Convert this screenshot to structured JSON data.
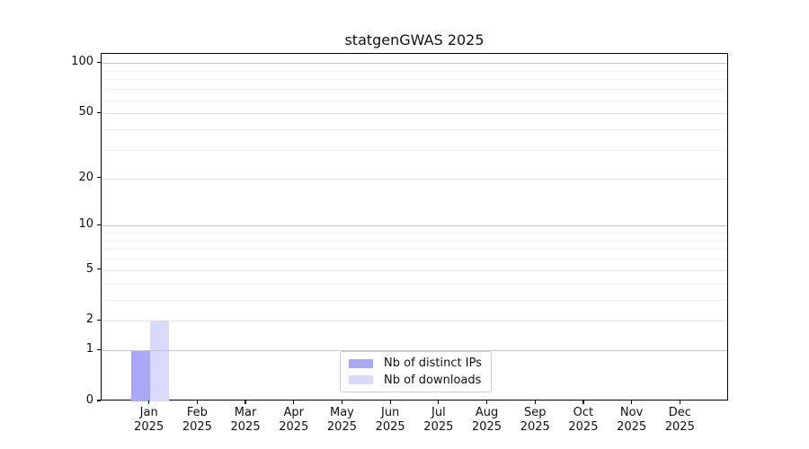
{
  "title": "statgenGWAS 2025",
  "chart_data": {
    "type": "bar",
    "title": "statgenGWAS 2025",
    "categories": [
      "Jan 2025",
      "Feb 2025",
      "Mar 2025",
      "Apr 2025",
      "May 2025",
      "Jun 2025",
      "Jul 2025",
      "Aug 2025",
      "Sep 2025",
      "Oct 2025",
      "Nov 2025",
      "Dec 2025"
    ],
    "series": [
      {
        "name": "Nb of distinct IPs",
        "color": "#a8a8f6",
        "values": [
          1,
          0,
          0,
          0,
          0,
          0,
          0,
          0,
          0,
          0,
          0,
          0
        ]
      },
      {
        "name": "Nb of downloads",
        "color": "#d9dafb",
        "values": [
          2,
          0,
          0,
          0,
          0,
          0,
          0,
          0,
          0,
          0,
          0,
          0
        ]
      }
    ],
    "xlabel": "",
    "ylabel": "",
    "yscale": "log1p",
    "ylim": [
      0,
      113.7
    ],
    "y_ticks": [
      0,
      1,
      2,
      5,
      10,
      20,
      50,
      100
    ],
    "y_minor_ticks": [
      3,
      4,
      6,
      7,
      8,
      9,
      30,
      40,
      60,
      70,
      80,
      90
    ],
    "grid": "horizontal",
    "legend_position": "lower center",
    "colors": {
      "axis": "#000000",
      "grid_decade": "#c5c5c5",
      "grid_major": "#e2e2e2",
      "grid_minor": "#f0f0f0",
      "background": "#ffffff",
      "text": "#111111"
    }
  }
}
